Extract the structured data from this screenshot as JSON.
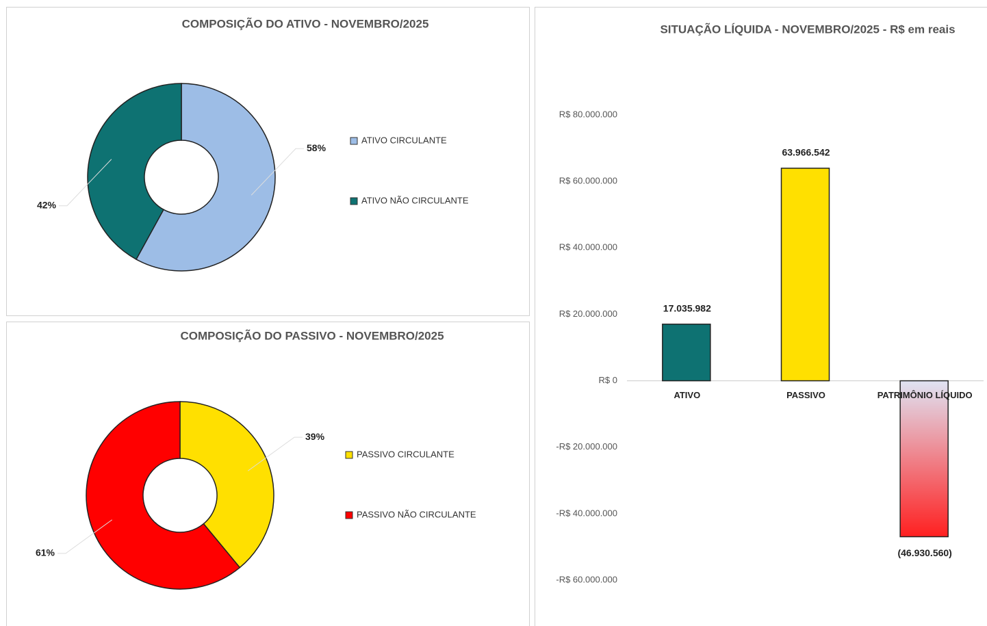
{
  "chart_data": [
    {
      "type": "donut",
      "title": "COMPOSIÇÃO DO ATIVO - NOVEMBRO/2025",
      "categories": [
        "ATIVO CIRCULANTE",
        "ATIVO NÃO CIRCULANTE"
      ],
      "values": [
        58,
        42
      ],
      "value_labels": [
        "58%",
        "42%"
      ],
      "colors": [
        "#9dbde6",
        "#0e7272"
      ],
      "legend": "right"
    },
    {
      "type": "donut",
      "title": "COMPOSIÇÃO DO PASSIVO - NOVEMBRO/2025",
      "categories": [
        "PASSIVO CIRCULANTE",
        "PASSIVO NÃO CIRCULANTE"
      ],
      "values": [
        39,
        61
      ],
      "value_labels": [
        "39%",
        "61%"
      ],
      "colors": [
        "#ffe000",
        "#ff0000"
      ],
      "legend": "right"
    },
    {
      "type": "bar",
      "title": "SITUAÇÃO LÍQUIDA - NOVEMBRO/2025 - R$ em reais",
      "categories": [
        "ATIVO",
        "PASSIVO",
        "PATRIMÔNIO LÍQUIDO"
      ],
      "values": [
        17035982,
        63966542,
        -46930560
      ],
      "value_labels": [
        "17.035.982",
        "63.966.542",
        "(46.930.560)"
      ],
      "colors": [
        "#0e7272",
        "#ffe000",
        "#ff2020"
      ],
      "ylim": [
        -60000000,
        80000000
      ],
      "yticks": [
        {
          "value": 80000000,
          "label": "R$ 80.000.000"
        },
        {
          "value": 60000000,
          "label": "R$ 60.000.000"
        },
        {
          "value": 40000000,
          "label": "R$ 40.000.000"
        },
        {
          "value": 20000000,
          "label": "R$ 20.000.000"
        },
        {
          "value": 0,
          "label": "R$ 0"
        },
        {
          "value": -20000000,
          "label": "-R$ 20.000.000"
        },
        {
          "value": -40000000,
          "label": "-R$ 40.000.000"
        },
        {
          "value": -60000000,
          "label": "-R$ 60.000.000"
        }
      ],
      "grid": false
    }
  ]
}
